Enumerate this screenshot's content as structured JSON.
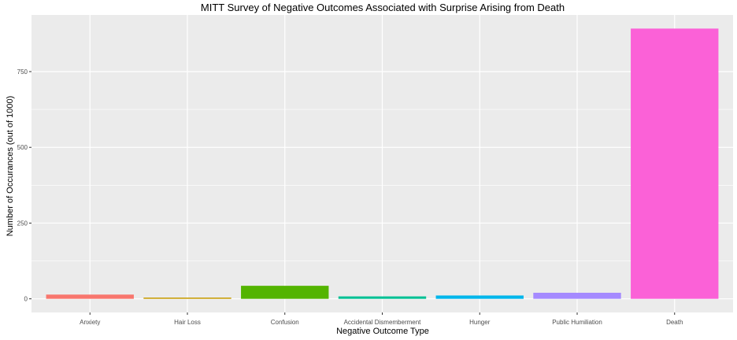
{
  "chart_data": {
    "type": "bar",
    "title": "MITT Survey of Negative Outcomes Associated with Surprise Arising from Death",
    "xlabel": "Negative Outcome Type",
    "ylabel": "Number of Occurances (out of 1000)",
    "categories": [
      "Anxiety",
      "Hair Loss",
      "Confusion",
      "Accidental Dismemberment",
      "Hunger",
      "Public Humiliation",
      "Death"
    ],
    "values": [
      14,
      4,
      43,
      8,
      11,
      20,
      892
    ],
    "colors": [
      "#F8766D",
      "#C49A00",
      "#53B400",
      "#00C094",
      "#00B6EB",
      "#A58AFF",
      "#FB61D7"
    ],
    "y_ticks": [
      0,
      250,
      500,
      750
    ],
    "ylim": [
      -45,
      937
    ],
    "grid": true,
    "legend": "none",
    "panel_background": "#EBEBEB",
    "grid_color": "#FFFFFF"
  }
}
